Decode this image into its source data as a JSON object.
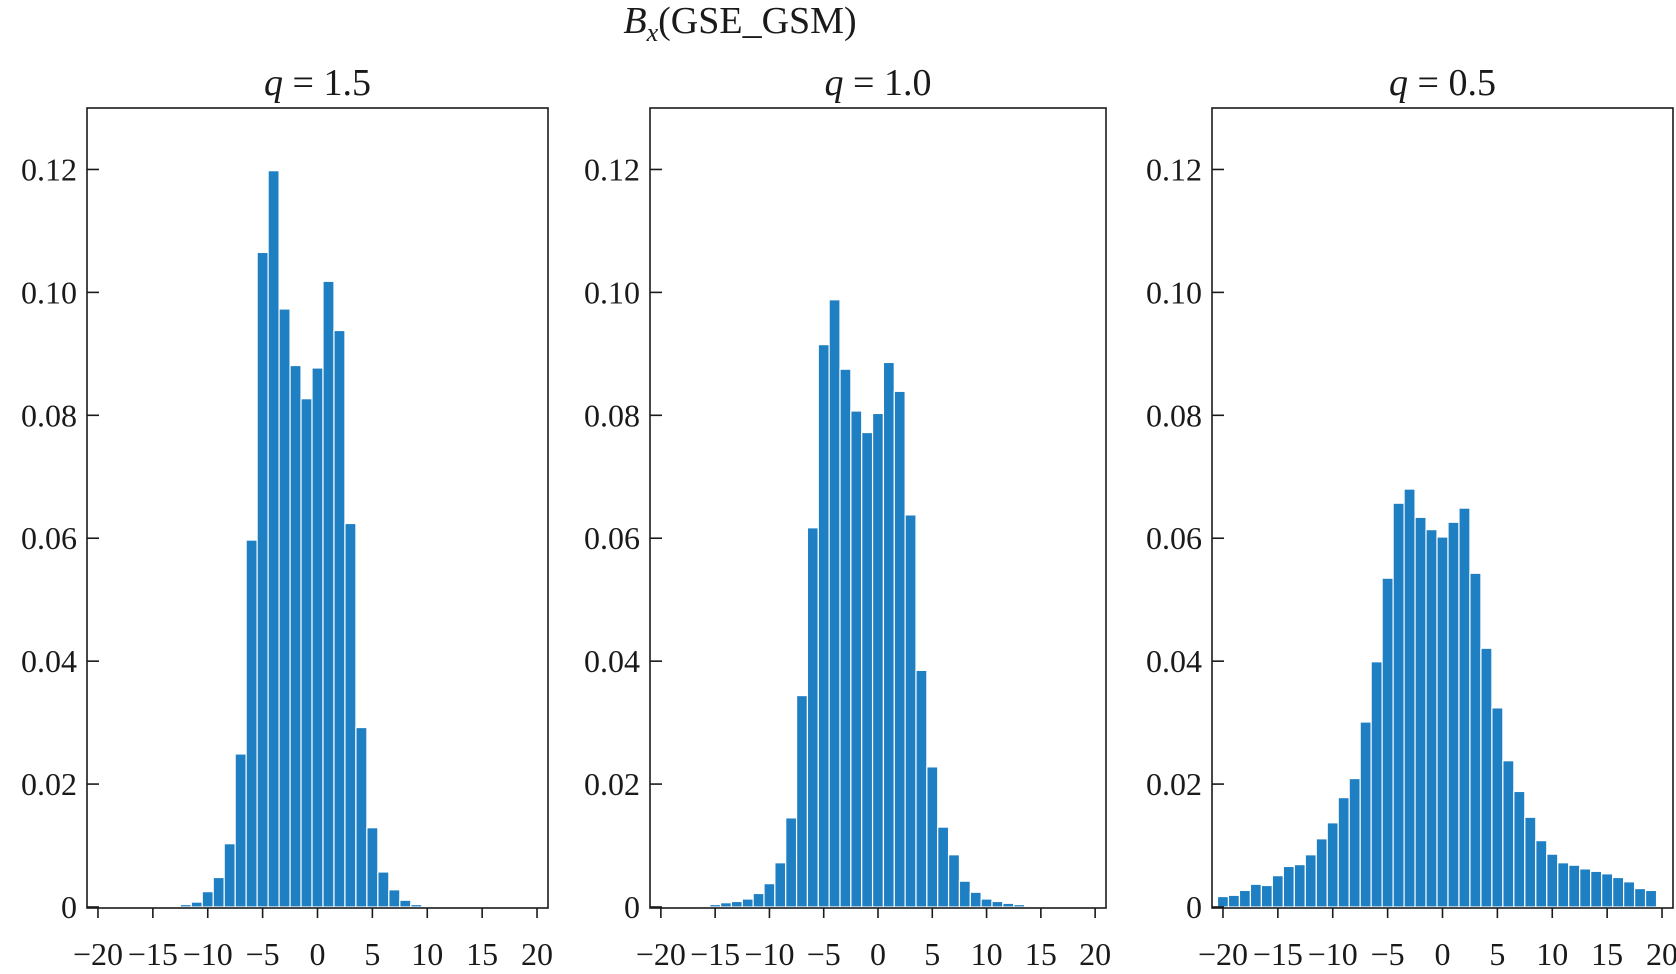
{
  "figure_title": "B",
  "figure_title_sub": "x",
  "figure_title_rest": "(GSE_GSM)",
  "chart_data": [
    {
      "type": "bar",
      "title_var": "q",
      "title_val": " = 1.5",
      "xticks": [
        -20,
        -15,
        -10,
        -5,
        0,
        5,
        10,
        15,
        20
      ],
      "yticks": [
        0,
        0.02,
        0.04,
        0.06,
        0.08,
        0.1,
        0.12
      ],
      "ytick_labels": [
        "0",
        "0.02",
        "0.04",
        "0.06",
        "0.08",
        "0.10",
        "0.12"
      ],
      "xtick_labels": [
        "−20",
        "−15",
        "−10",
        "−5",
        "0",
        "5",
        "10",
        "15",
        "20"
      ],
      "xlim": [
        -21,
        21
      ],
      "ylim": [
        0,
        0.13
      ],
      "bin_width": 1,
      "bin_centers": [
        -20,
        -19,
        -18,
        -17,
        -16,
        -15,
        -14,
        -13,
        -12,
        -11,
        -10,
        -9,
        -8,
        -7,
        -6,
        -5,
        -4,
        -3,
        -2,
        -1,
        0,
        1,
        2,
        3,
        4,
        5,
        6,
        7,
        8,
        9,
        10,
        11,
        12,
        13,
        14,
        15,
        16,
        17,
        18,
        19
      ],
      "values": [
        0,
        0,
        0,
        0,
        0,
        0,
        0,
        0,
        0.0004,
        0.0008,
        0.0025,
        0.0048,
        0.0103,
        0.0249,
        0.0597,
        0.1065,
        0.1198,
        0.0973,
        0.0881,
        0.0827,
        0.0877,
        0.1018,
        0.0938,
        0.0624,
        0.0292,
        0.0129,
        0.0057,
        0.0028,
        0.0011,
        0.0004,
        0,
        0,
        0,
        0,
        0,
        0,
        0,
        0,
        0,
        0
      ]
    },
    {
      "type": "bar",
      "title_var": "q",
      "title_val": " = 1.0",
      "xticks": [
        -20,
        -15,
        -10,
        -5,
        0,
        5,
        10,
        15,
        20
      ],
      "yticks": [
        0,
        0.02,
        0.04,
        0.06,
        0.08,
        0.1,
        0.12
      ],
      "ytick_labels": [
        "0",
        "0.02",
        "0.04",
        "0.06",
        "0.08",
        "0.10",
        "0.12"
      ],
      "xtick_labels": [
        "−20",
        "−15",
        "−10",
        "−5",
        "0",
        "5",
        "10",
        "15",
        "20"
      ],
      "xlim": [
        -21,
        21
      ],
      "ylim": [
        0,
        0.13
      ],
      "bin_width": 1,
      "bin_centers": [
        -20,
        -19,
        -18,
        -17,
        -16,
        -15,
        -14,
        -13,
        -12,
        -11,
        -10,
        -9,
        -8,
        -7,
        -6,
        -5,
        -4,
        -3,
        -2,
        -1,
        0,
        1,
        2,
        3,
        4,
        5,
        6,
        7,
        8,
        9,
        10,
        11,
        12,
        13,
        14,
        15,
        16,
        17,
        18,
        19
      ],
      "values": [
        0,
        0,
        0,
        0,
        0.0002,
        0.0004,
        0.0007,
        0.0009,
        0.0013,
        0.0022,
        0.0038,
        0.0072,
        0.0145,
        0.0344,
        0.0617,
        0.0915,
        0.0988,
        0.0875,
        0.0807,
        0.0772,
        0.0803,
        0.0886,
        0.0839,
        0.0638,
        0.0385,
        0.0228,
        0.013,
        0.0085,
        0.0042,
        0.0024,
        0.0013,
        0.0009,
        0.0006,
        0.0004,
        0.0002,
        0,
        0,
        0,
        0,
        0
      ]
    },
    {
      "type": "bar",
      "title_var": "q",
      "title_val": " = 0.5",
      "xticks": [
        -20,
        -15,
        -10,
        -5,
        0,
        5,
        10,
        15,
        20
      ],
      "yticks": [
        0,
        0.02,
        0.04,
        0.06,
        0.08,
        0.1,
        0.12
      ],
      "ytick_labels": [
        "0",
        "0.02",
        "0.04",
        "0.06",
        "0.08",
        "0.10",
        "0.12"
      ],
      "xtick_labels": [
        "−20",
        "−15",
        "−10",
        "−5",
        "0",
        "5",
        "10",
        "15",
        "20"
      ],
      "xlim": [
        -21,
        21
      ],
      "ylim": [
        0,
        0.13
      ],
      "bin_width": 1,
      "bin_centers": [
        -20,
        -19,
        -18,
        -17,
        -16,
        -15,
        -14,
        -13,
        -12,
        -11,
        -10,
        -9,
        -8,
        -7,
        -6,
        -5,
        -4,
        -3,
        -2,
        -1,
        0,
        1,
        2,
        3,
        4,
        5,
        6,
        7,
        8,
        9,
        10,
        11,
        12,
        13,
        14,
        15,
        16,
        17,
        18,
        19
      ],
      "values": [
        0.0017,
        0.0019,
        0.0027,
        0.0037,
        0.0035,
        0.0051,
        0.0066,
        0.0069,
        0.0085,
        0.0111,
        0.0137,
        0.0178,
        0.0209,
        0.0301,
        0.0399,
        0.0535,
        0.0657,
        0.068,
        0.0634,
        0.0614,
        0.0602,
        0.0626,
        0.0649,
        0.0543,
        0.0421,
        0.0324,
        0.0238,
        0.0188,
        0.0146,
        0.0108,
        0.0086,
        0.0072,
        0.0068,
        0.0062,
        0.0058,
        0.0054,
        0.0048,
        0.0041,
        0.003,
        0.0027
      ]
    }
  ]
}
